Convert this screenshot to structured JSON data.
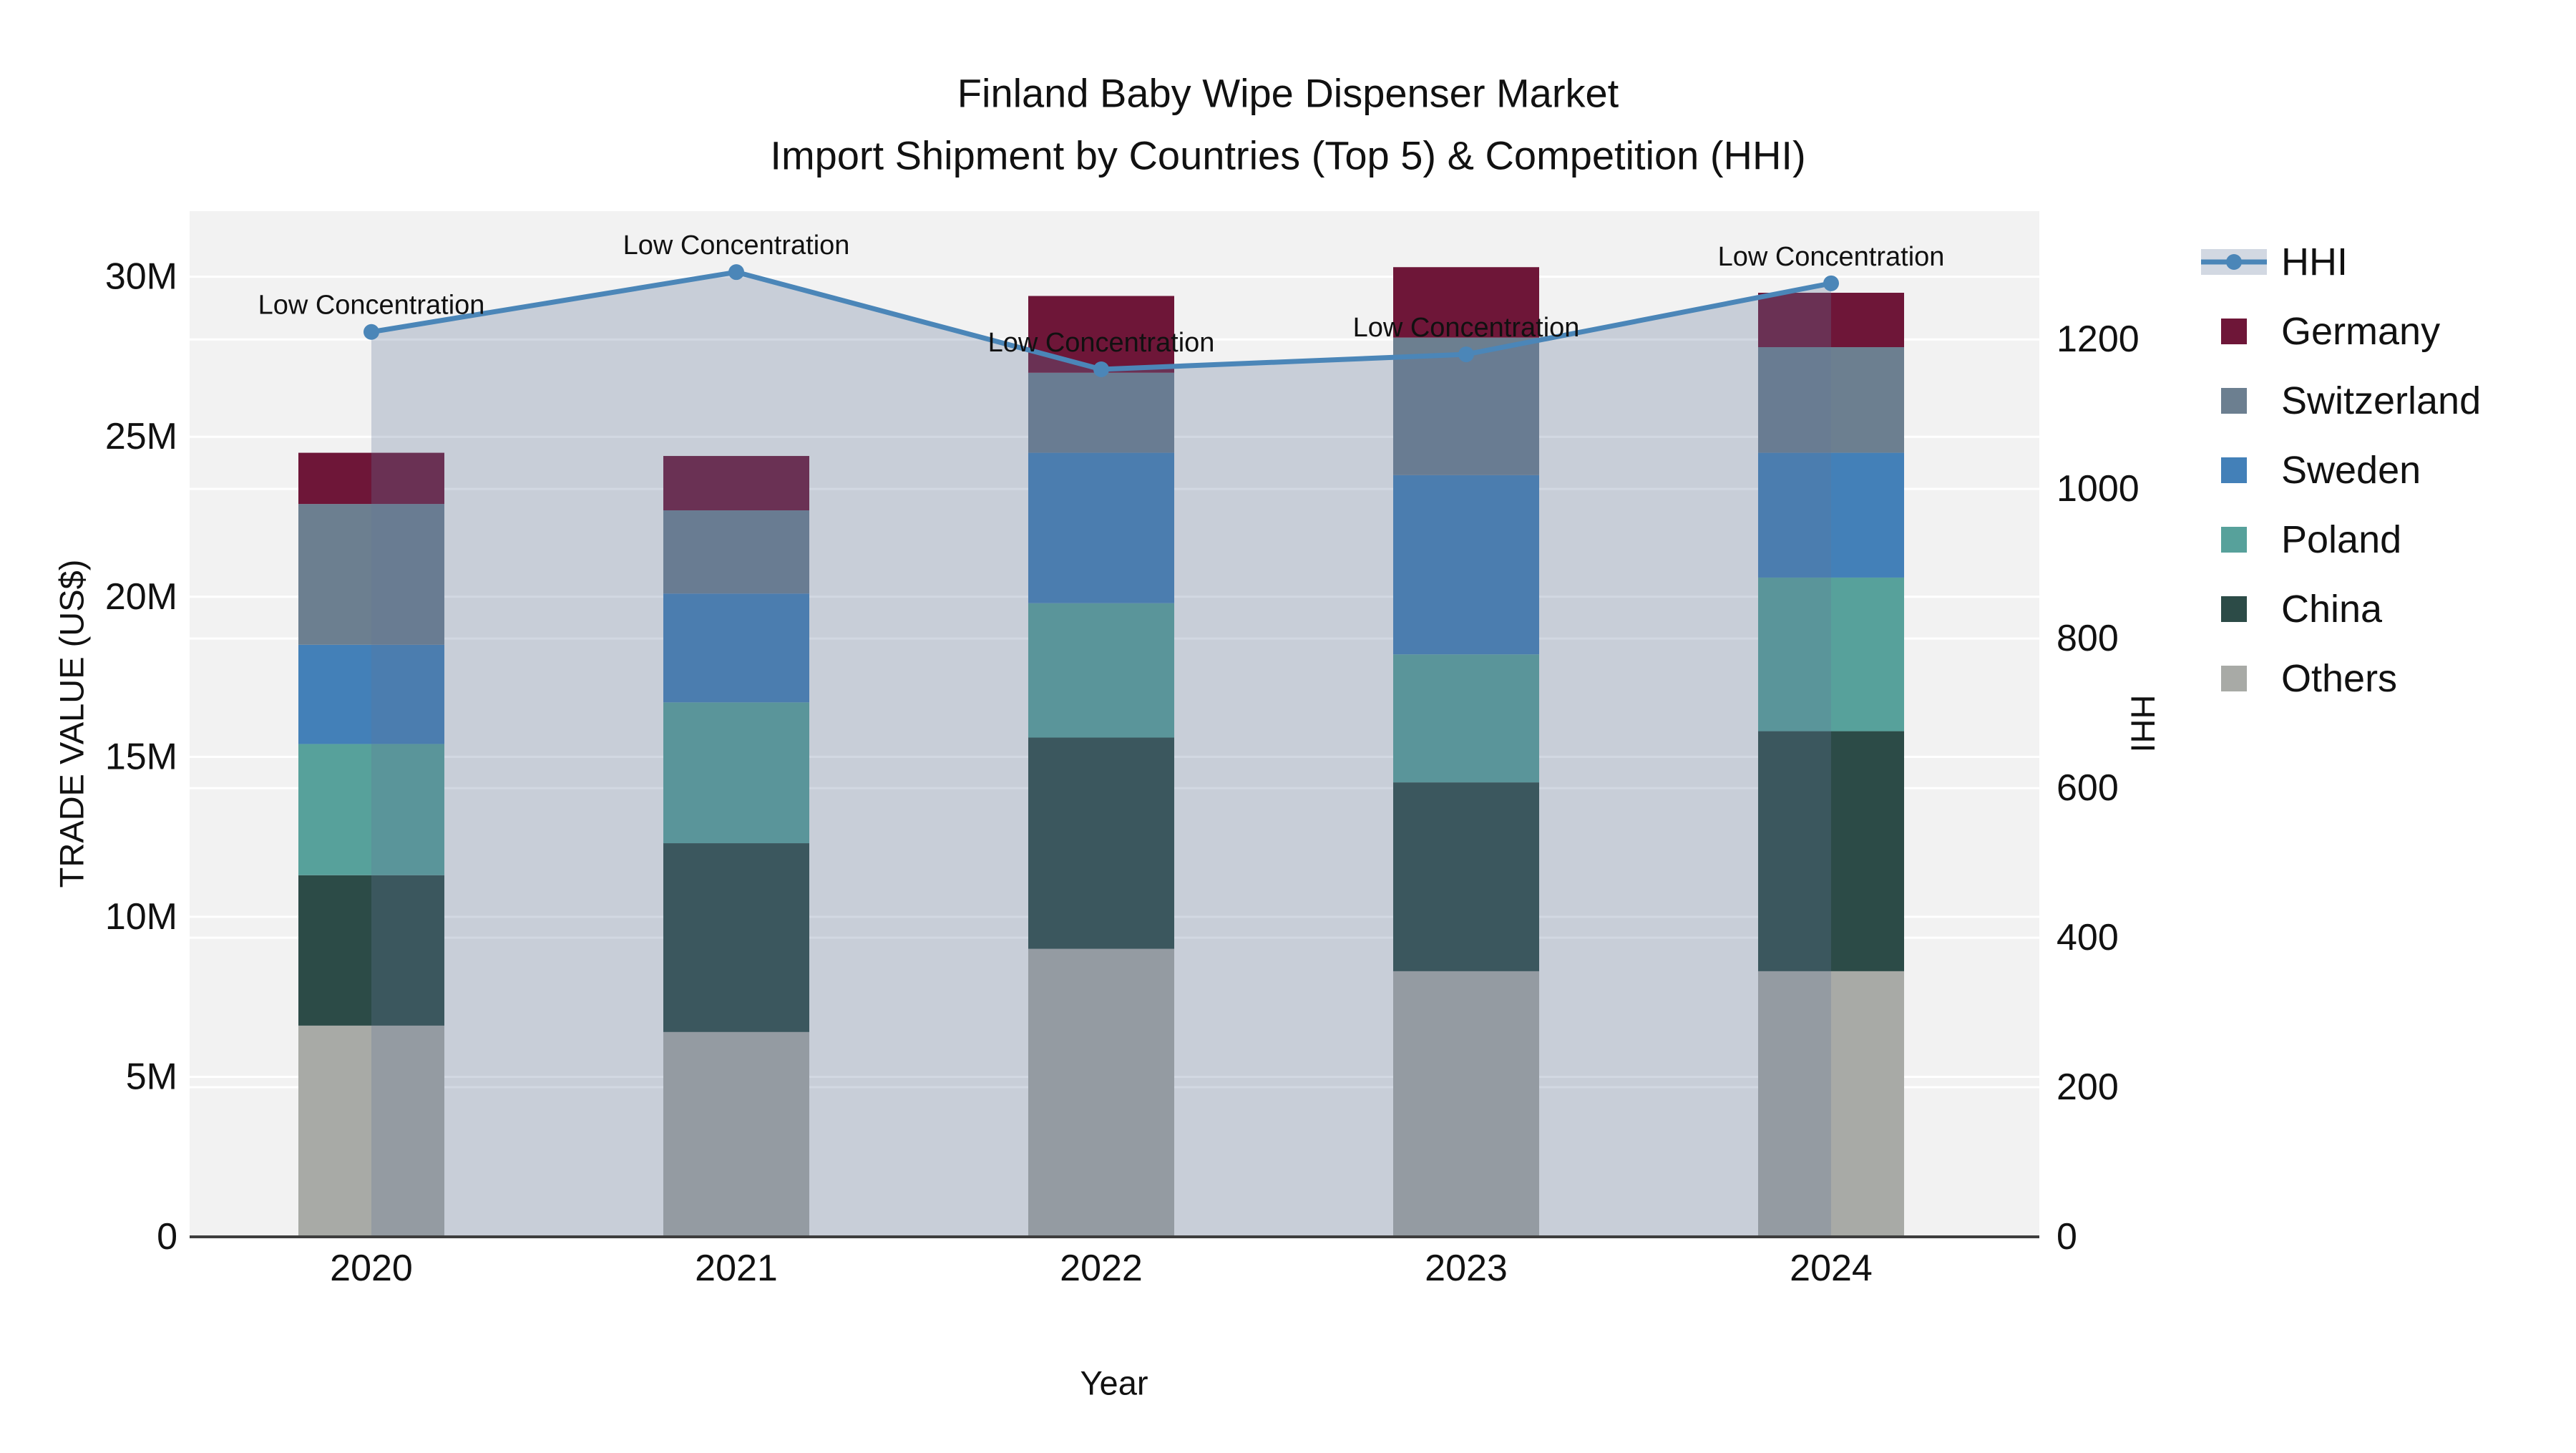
{
  "chart_data": {
    "type": "stacked_bar_line_combo",
    "title_line1": "Finland Baby Wipe Dispenser Market",
    "title_line2": "Import Shipment by Countries (Top 5) & Competition (HHI)",
    "xlabel": "Year",
    "ylabel_left": "TRADE VALUE (US$)",
    "ylabel_right": "HHI",
    "categories": [
      "2020",
      "2021",
      "2022",
      "2023",
      "2024"
    ],
    "unit_left": "millions US$",
    "bar_series": [
      {
        "name": "Germany",
        "color": "#6E1638",
        "values": [
          1.6,
          1.7,
          2.4,
          2.2,
          1.7
        ]
      },
      {
        "name": "Switzerland",
        "color": "#6C7F90",
        "values": [
          4.4,
          2.6,
          2.5,
          4.3,
          3.3
        ]
      },
      {
        "name": "Sweden",
        "color": "#4380B8",
        "values": [
          3.1,
          3.4,
          4.7,
          5.6,
          3.9
        ]
      },
      {
        "name": "Poland",
        "color": "#57A19B",
        "values": [
          4.1,
          4.4,
          4.2,
          4.0,
          4.8
        ]
      },
      {
        "name": "China",
        "color": "#2C4B47",
        "values": [
          4.7,
          5.9,
          6.6,
          5.9,
          7.5
        ]
      },
      {
        "name": "Others",
        "color": "#A8AAA6",
        "values": [
          6.6,
          6.4,
          9.0,
          8.3,
          8.3
        ]
      }
    ],
    "stack_order_bottom_to_top": [
      "Others",
      "China",
      "Poland",
      "Sweden",
      "Switzerland",
      "Germany"
    ],
    "line_series": {
      "name": "HHI",
      "color": "#4B86B8",
      "fill_color": "rgba(98,119,154,0.285)",
      "legend_band_color": "#D2D8E2",
      "values": [
        1210,
        1290,
        1160,
        1180,
        1275
      ]
    },
    "annotations": [
      "Low Concentration",
      "Low Concentration",
      "Low Concentration",
      "Low Concentration",
      "Low Concentration"
    ],
    "yticks_left": [
      {
        "label": "0",
        "value": 0
      },
      {
        "label": "5M",
        "value": 5
      },
      {
        "label": "10M",
        "value": 10
      },
      {
        "label": "15M",
        "value": 15
      },
      {
        "label": "20M",
        "value": 20
      },
      {
        "label": "25M",
        "value": 25
      },
      {
        "label": "30M",
        "value": 30
      }
    ],
    "yticks_right": [
      {
        "label": "0",
        "value": 0
      },
      {
        "label": "200",
        "value": 200
      },
      {
        "label": "400",
        "value": 400
      },
      {
        "label": "600",
        "value": 600
      },
      {
        "label": "800",
        "value": 800
      },
      {
        "label": "1000",
        "value": 1000
      },
      {
        "label": "1200",
        "value": 1200
      }
    ],
    "ylim_left": [
      0,
      32.05
    ],
    "ylim_right": [
      0,
      1371.5
    ],
    "legend_entries": [
      "HHI",
      "Germany",
      "Switzerland",
      "Sweden",
      "Poland",
      "China",
      "Others"
    ],
    "plot_bg_color": "#F2F2F2",
    "gridline_color": "#FFFFFF",
    "axis_line_color": "#3E3E3E",
    "text_color": "#111111"
  }
}
